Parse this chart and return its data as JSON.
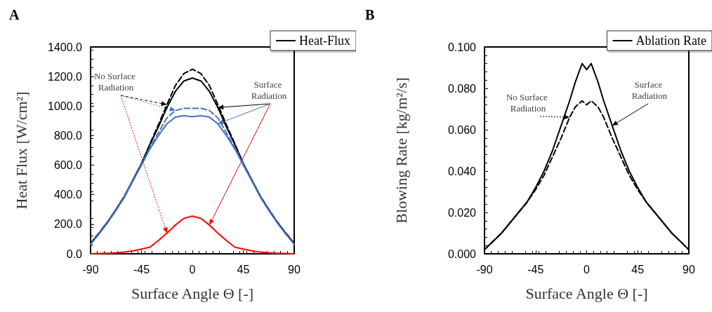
{
  "chart_data": [
    {
      "type": "line",
      "title": "A",
      "xlabel": "Surface Angle Θ [-]",
      "ylabel": "Heat Flux [W/cm²]",
      "x": [
        -90,
        -82.5,
        -75,
        -67.5,
        -60,
        -52.5,
        -45,
        -37.5,
        -30,
        -22.5,
        -15,
        -7.5,
        0,
        7.5,
        15,
        22.5,
        30,
        37.5,
        45,
        52.5,
        60,
        67.5,
        75,
        82.5,
        90
      ],
      "series": [
        {
          "name": "Heat-Flux",
          "color": "#000000",
          "line_style": "solid",
          "values": [
            70,
            140,
            215,
            300,
            390,
            500,
            610,
            740,
            860,
            990,
            1100,
            1170,
            1190,
            1170,
            1100,
            990,
            860,
            740,
            610,
            500,
            390,
            300,
            215,
            140,
            70
          ]
        },
        {
          "color": "#000000",
          "line_style": "dashed",
          "values": [
            70,
            140,
            215,
            300,
            390,
            500,
            610,
            745,
            875,
            1010,
            1140,
            1220,
            1250,
            1220,
            1140,
            1010,
            875,
            745,
            610,
            500,
            390,
            300,
            215,
            140,
            70
          ]
        },
        {
          "color": "#4472c4",
          "line_style": "solid",
          "values": [
            65,
            135,
            210,
            295,
            385,
            495,
            600,
            710,
            800,
            880,
            925,
            935,
            928,
            935,
            925,
            880,
            800,
            710,
            600,
            495,
            385,
            295,
            210,
            135,
            65
          ]
        },
        {
          "color": "#4472c4",
          "line_style": "dashed",
          "values": [
            65,
            135,
            210,
            295,
            385,
            495,
            605,
            720,
            820,
            920,
            970,
            985,
            985,
            985,
            970,
            920,
            820,
            720,
            605,
            495,
            385,
            295,
            210,
            135,
            65
          ]
        },
        {
          "color": "#ff0000",
          "line_style": "solid",
          "values": [
            0,
            2,
            4,
            7,
            12,
            20,
            32,
            45,
            90,
            140,
            195,
            240,
            255,
            240,
            195,
            140,
            90,
            45,
            32,
            20,
            12,
            7,
            4,
            2,
            0
          ]
        }
      ],
      "xlim": [
        -90,
        90
      ],
      "xticks": [
        -90,
        -45,
        0,
        45,
        90
      ],
      "ylim": [
        0,
        1400
      ],
      "yticks": [
        {
          "value": 0,
          "label": "0.0"
        },
        {
          "value": 200,
          "label": "200.0"
        },
        {
          "value": 400,
          "label": "400.0"
        },
        {
          "value": 600,
          "label": "600.0"
        },
        {
          "value": 800,
          "label": "800.0"
        },
        {
          "value": 1000,
          "label": "1000.0"
        },
        {
          "value": 1200,
          "label": "1200.0"
        },
        {
          "value": 1400,
          "label": "1400.0"
        }
      ],
      "annotations": [
        {
          "text": "No Surface Radiation",
          "x": -22.5,
          "y": 1010
        },
        {
          "text": "Surface Radiation",
          "x": 22.5,
          "y": 990
        }
      ],
      "legend": "top right",
      "grid": false,
      "marker": "none"
    },
    {
      "type": "line",
      "title": "B",
      "xlabel": "Surface Angle Θ [-]",
      "ylabel": "Blowing Rate [kg/m²/s]",
      "x": [
        -90,
        -82.5,
        -75,
        -67.5,
        -60,
        -52.5,
        -45,
        -37.5,
        -30,
        -22.5,
        -15,
        -10,
        -4,
        0,
        4,
        10,
        15,
        22.5,
        30,
        37.5,
        45,
        52.5,
        60,
        67.5,
        75,
        82.5,
        90
      ],
      "series": [
        {
          "name": "Ablation Rate",
          "color": "#000000",
          "line_style": "solid",
          "values": [
            0.002,
            0.006,
            0.01,
            0.015,
            0.02,
            0.025,
            0.032,
            0.04,
            0.05,
            0.062,
            0.074,
            0.083,
            0.092,
            0.089,
            0.092,
            0.083,
            0.074,
            0.062,
            0.05,
            0.04,
            0.032,
            0.025,
            0.02,
            0.015,
            0.01,
            0.006,
            0.002
          ]
        },
        {
          "color": "#000000",
          "line_style": "dashed",
          "values": [
            0.002,
            0.006,
            0.01,
            0.015,
            0.02,
            0.025,
            0.031,
            0.038,
            0.047,
            0.056,
            0.066,
            0.071,
            0.074,
            0.072,
            0.074,
            0.071,
            0.066,
            0.056,
            0.047,
            0.038,
            0.031,
            0.025,
            0.02,
            0.015,
            0.01,
            0.006,
            0.002
          ]
        }
      ],
      "xlim": [
        -90,
        90
      ],
      "xticks": [
        -90,
        -45,
        0,
        45,
        90
      ],
      "ylim": [
        0,
        0.1
      ],
      "yticks": [
        {
          "value": 0,
          "label": "0.000"
        },
        {
          "value": 0.02,
          "label": "0.020"
        },
        {
          "value": 0.04,
          "label": "0.040"
        },
        {
          "value": 0.06,
          "label": "0.060"
        },
        {
          "value": 0.08,
          "label": "0.080"
        },
        {
          "value": 0.1,
          "label": "0.100"
        }
      ],
      "annotations": [
        {
          "text": "No Surface Radiation",
          "x": -15,
          "y": 0.066
        },
        {
          "text": "Surface Radiation",
          "x": 22.5,
          "y": 0.062
        }
      ],
      "legend": "top right",
      "grid": false,
      "marker": "none"
    }
  ]
}
